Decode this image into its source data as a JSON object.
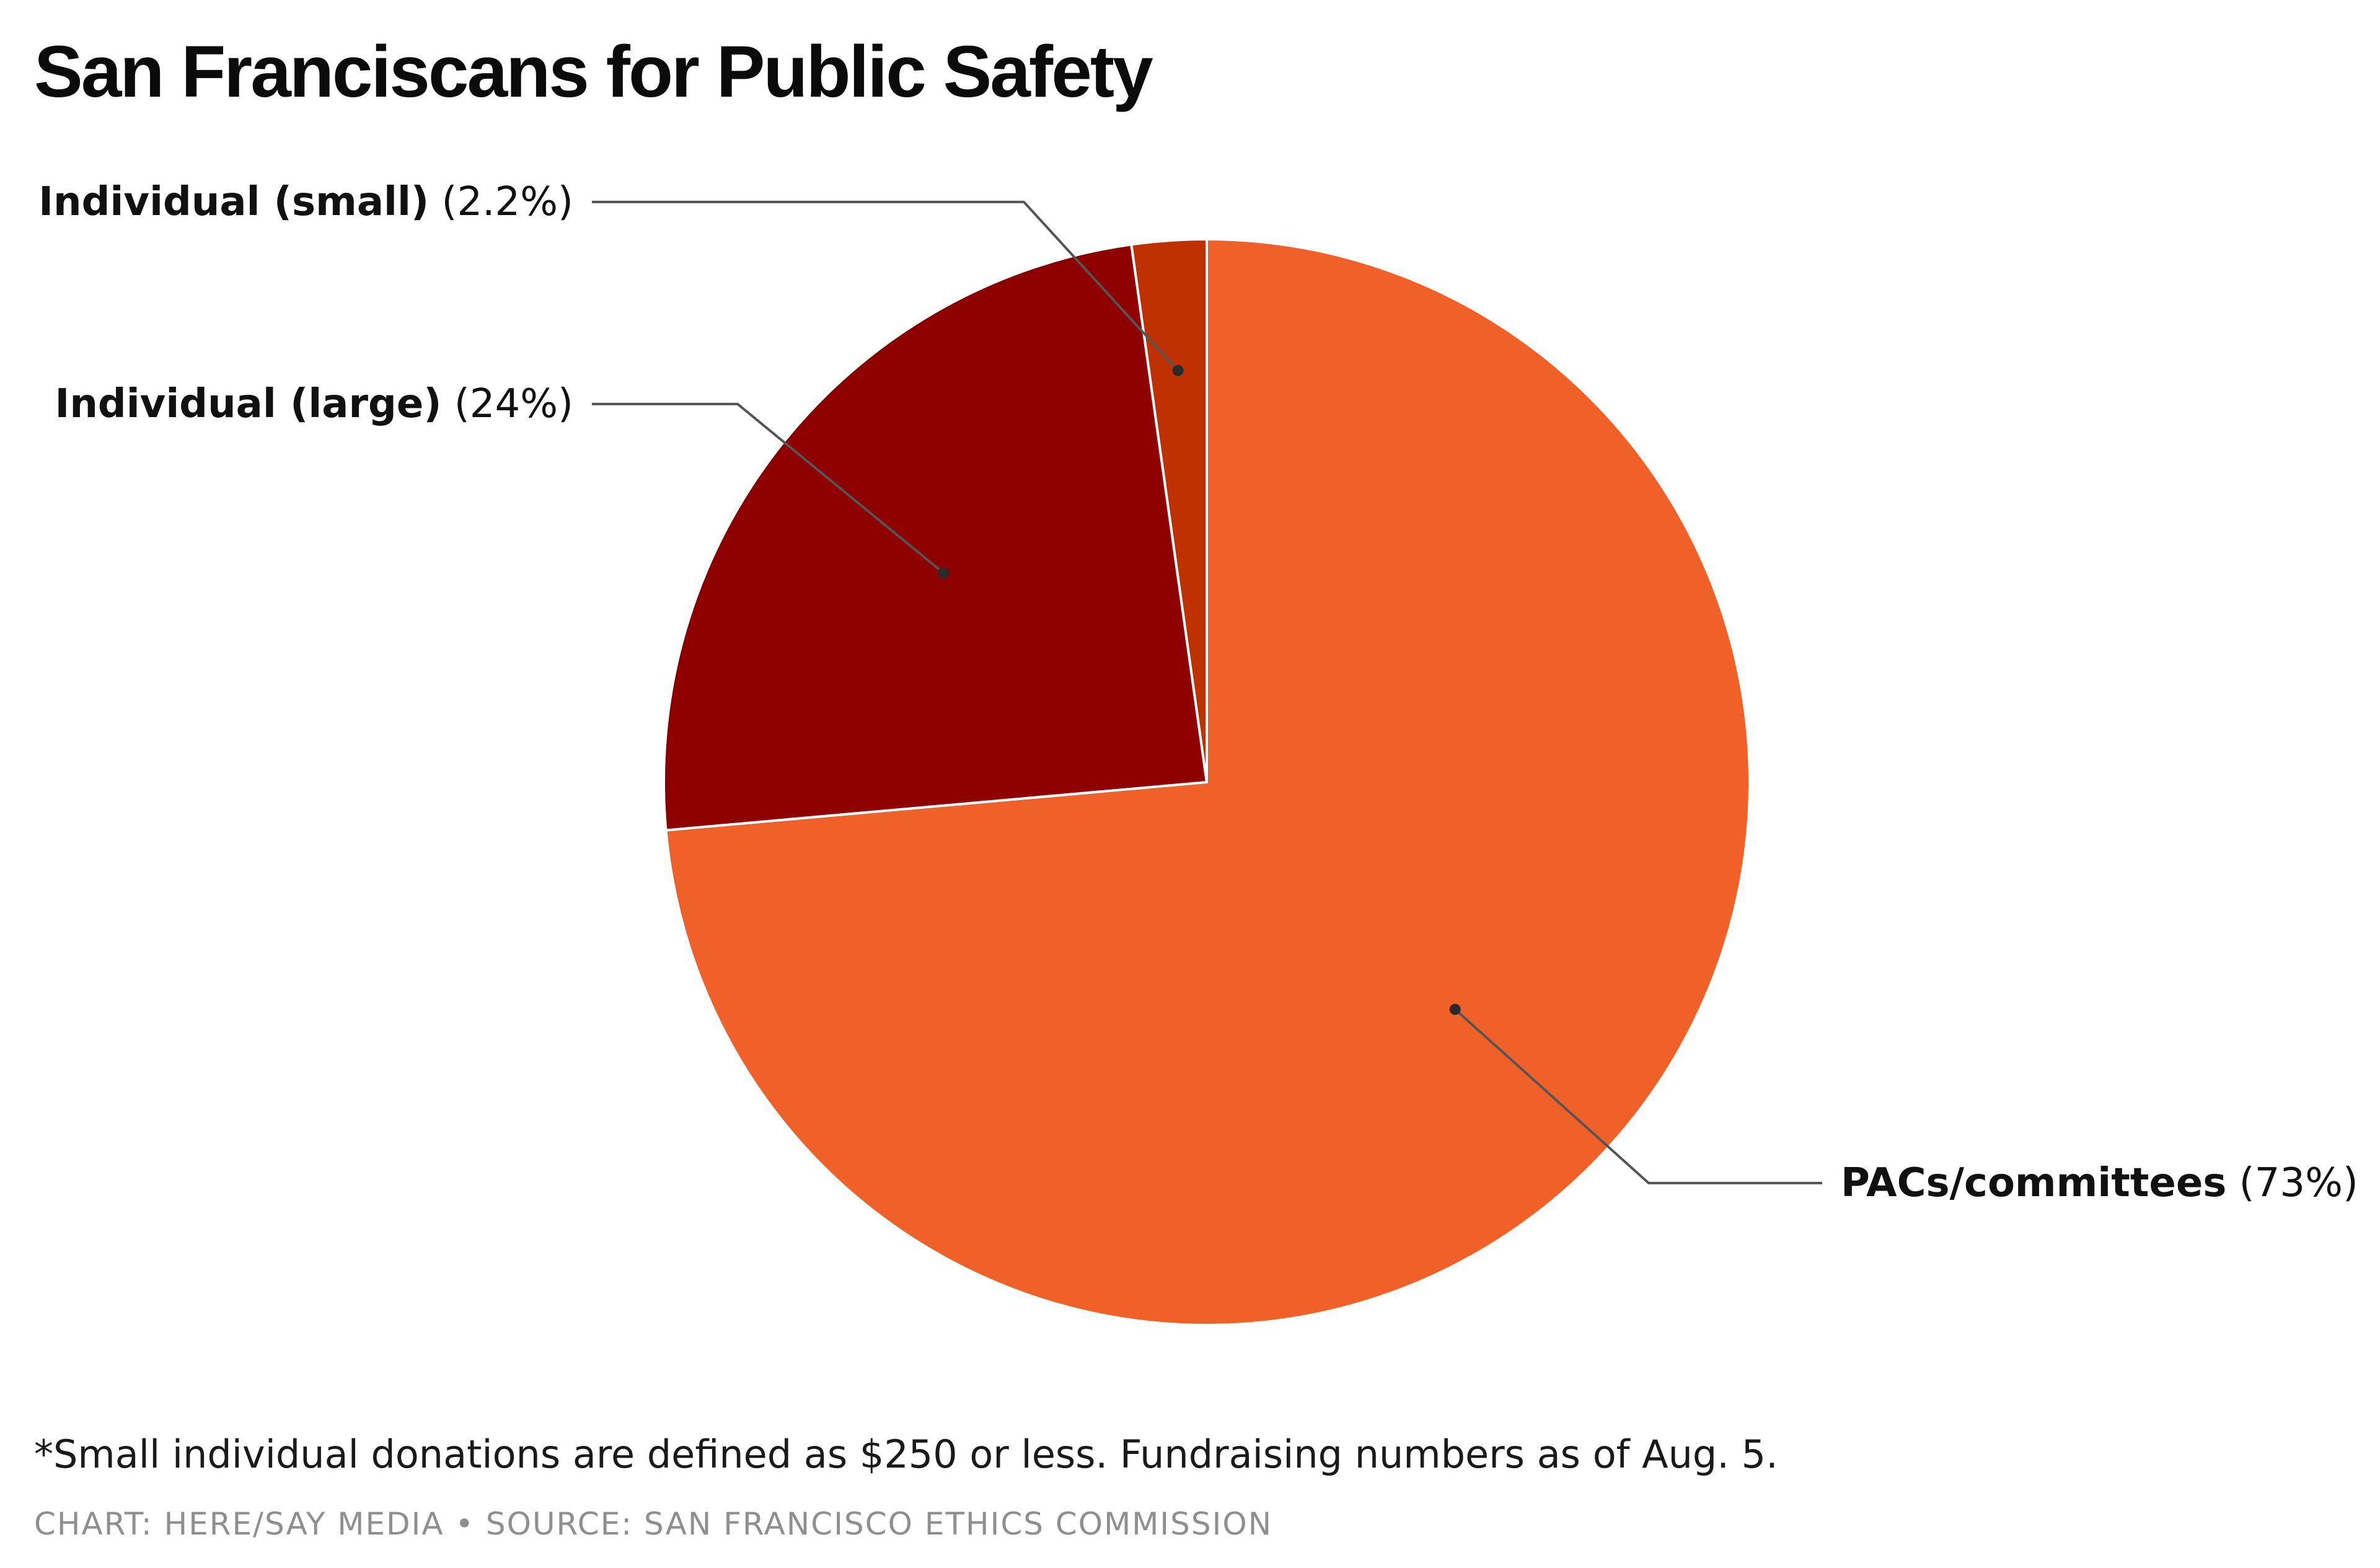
{
  "title": "San Franciscans for Public Safety",
  "footnote": "*Small individual donations are defined as $250 or less. Fundraising numbers as of Aug. 5.",
  "credit": "CHART: HERE/SAY MEDIA • SOURCE: SAN FRANCISCO ETHICS COMMISSION",
  "chart_data": {
    "type": "pie",
    "title": "San Franciscans for Public Safety",
    "start_angle": "12 o'clock, clockwise",
    "slices": [
      {
        "label": "PACs/committees",
        "value": 73,
        "value_label": "(73%)",
        "color": "#F0612A"
      },
      {
        "label": "Individual (large)",
        "value": 24,
        "value_label": "(24%)",
        "color": "#8E0000"
      },
      {
        "label": "Individual (small)",
        "value": 2.2,
        "value_label": "(2.2%)",
        "color": "#C03100"
      }
    ]
  },
  "colors": {
    "background": "#FFFFFF",
    "title": "#0B0B0B",
    "leader_line": "#555555",
    "credit": "#8F8F8F"
  }
}
